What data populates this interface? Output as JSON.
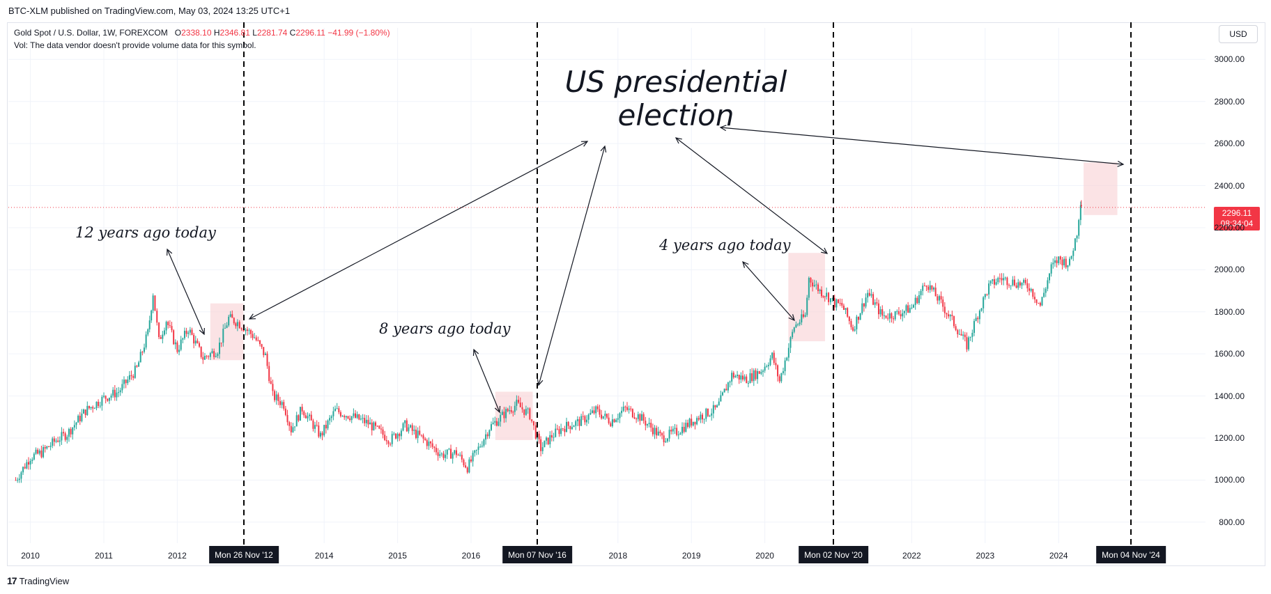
{
  "header": {
    "publisher": "BTC-XLM published on TradingView.com, May 03, 2024 13:25 UTC+1"
  },
  "legend": {
    "symbol": "Gold Spot / U.S. Dollar, 1W, FOREXCOM",
    "open_label": "O",
    "open_value": "2338.10",
    "high_label": "H",
    "high_value": "2346.81",
    "low_label": "L",
    "low_value": "2281.74",
    "close_label": "C",
    "close_value": "2296.11",
    "change": "−41.99 (−1.80%)",
    "volume_note": "Vol: The data vendor doesn't provide volume data for this symbol."
  },
  "currency_button": "USD",
  "last_price": {
    "value": "2296.11",
    "countdown": "08:34:04"
  },
  "branding": {
    "name": "TradingView",
    "logo_text": "17"
  },
  "annotations": {
    "headline_line1": "US presidential",
    "headline_line2": "election",
    "label_12y": "12 years ago today",
    "label_8y": "8 years ago today",
    "label_4y": "4 years ago today"
  },
  "date_markers": [
    "Mon 26 Nov '12",
    "Mon 07 Nov '16",
    "Mon 02 Nov '20",
    "Mon 04 Nov '24"
  ],
  "colors": {
    "up": "#26a69a",
    "down": "#f23645",
    "highlight": "#f9d0d3",
    "marker_line": "#000000",
    "price_line": "#f23645"
  },
  "chart_data": {
    "type": "candlestick",
    "title": "Gold Spot / U.S. Dollar, 1W, FOREXCOM",
    "xlabel": "",
    "ylabel": "",
    "x_ticks": [
      "2010",
      "2011",
      "2012",
      "2014",
      "2015",
      "2016",
      "2018",
      "2019",
      "2020",
      "2022",
      "2023",
      "2024"
    ],
    "y_ticks": [
      "800.00",
      "1000.00",
      "1200.00",
      "1400.00",
      "1600.00",
      "1800.00",
      "2000.00",
      "2200.00",
      "2400.00",
      "2600.00",
      "2800.00",
      "3000.00"
    ],
    "ylim": [
      700,
      3150
    ],
    "xlim": [
      2009.7,
      2026.0
    ],
    "series": [
      {
        "values": [
          [
            2009.8,
            1000
          ],
          [
            2010.0,
            1110
          ],
          [
            2010.15,
            1130
          ],
          [
            2010.35,
            1190
          ],
          [
            2010.5,
            1220
          ],
          [
            2010.75,
            1330
          ],
          [
            2011.0,
            1390
          ],
          [
            2011.2,
            1420
          ],
          [
            2011.45,
            1530
          ],
          [
            2011.6,
            1700
          ],
          [
            2011.67,
            1890
          ],
          [
            2011.75,
            1660
          ],
          [
            2011.85,
            1760
          ],
          [
            2012.0,
            1620
          ],
          [
            2012.15,
            1720
          ],
          [
            2012.35,
            1580
          ],
          [
            2012.55,
            1620
          ],
          [
            2012.7,
            1770
          ],
          [
            2012.82,
            1750
          ],
          [
            2012.93,
            1720
          ],
          [
            2013.05,
            1680
          ],
          [
            2013.2,
            1590
          ],
          [
            2013.3,
            1400
          ],
          [
            2013.45,
            1360
          ],
          [
            2013.55,
            1240
          ],
          [
            2013.7,
            1340
          ],
          [
            2013.95,
            1210
          ],
          [
            2014.15,
            1330
          ],
          [
            2014.4,
            1300
          ],
          [
            2014.6,
            1270
          ],
          [
            2014.9,
            1190
          ],
          [
            2015.1,
            1260
          ],
          [
            2015.4,
            1180
          ],
          [
            2015.6,
            1120
          ],
          [
            2015.8,
            1130
          ],
          [
            2015.95,
            1060
          ],
          [
            2016.1,
            1150
          ],
          [
            2016.25,
            1250
          ],
          [
            2016.5,
            1330
          ],
          [
            2016.62,
            1360
          ],
          [
            2016.8,
            1310
          ],
          [
            2016.88,
            1220
          ],
          [
            2016.95,
            1150
          ],
          [
            2017.1,
            1210
          ],
          [
            2017.25,
            1250
          ],
          [
            2017.5,
            1280
          ],
          [
            2017.7,
            1330
          ],
          [
            2017.9,
            1280
          ],
          [
            2018.1,
            1340
          ],
          [
            2018.3,
            1300
          ],
          [
            2018.6,
            1200
          ],
          [
            2018.8,
            1230
          ],
          [
            2019.1,
            1300
          ],
          [
            2019.35,
            1340
          ],
          [
            2019.55,
            1500
          ],
          [
            2019.75,
            1480
          ],
          [
            2019.95,
            1520
          ],
          [
            2020.1,
            1590
          ],
          [
            2020.2,
            1470
          ],
          [
            2020.4,
            1730
          ],
          [
            2020.55,
            1780
          ],
          [
            2020.6,
            1960
          ],
          [
            2020.75,
            1900
          ],
          [
            2020.84,
            1880
          ],
          [
            2020.95,
            1840
          ],
          [
            2021.05,
            1830
          ],
          [
            2021.2,
            1720
          ],
          [
            2021.4,
            1890
          ],
          [
            2021.6,
            1780
          ],
          [
            2021.8,
            1790
          ],
          [
            2022.0,
            1820
          ],
          [
            2022.2,
            1940
          ],
          [
            2022.4,
            1840
          ],
          [
            2022.6,
            1730
          ],
          [
            2022.75,
            1640
          ],
          [
            2022.9,
            1790
          ],
          [
            2023.05,
            1920
          ],
          [
            2023.2,
            1960
          ],
          [
            2023.4,
            1940
          ],
          [
            2023.6,
            1920
          ],
          [
            2023.75,
            1830
          ],
          [
            2023.9,
            2010
          ],
          [
            2024.0,
            2050
          ],
          [
            2024.15,
            2030
          ],
          [
            2024.25,
            2180
          ],
          [
            2024.3,
            2330
          ],
          [
            2024.32,
            2296
          ]
        ]
      }
    ],
    "last_value": 2296.11
  }
}
